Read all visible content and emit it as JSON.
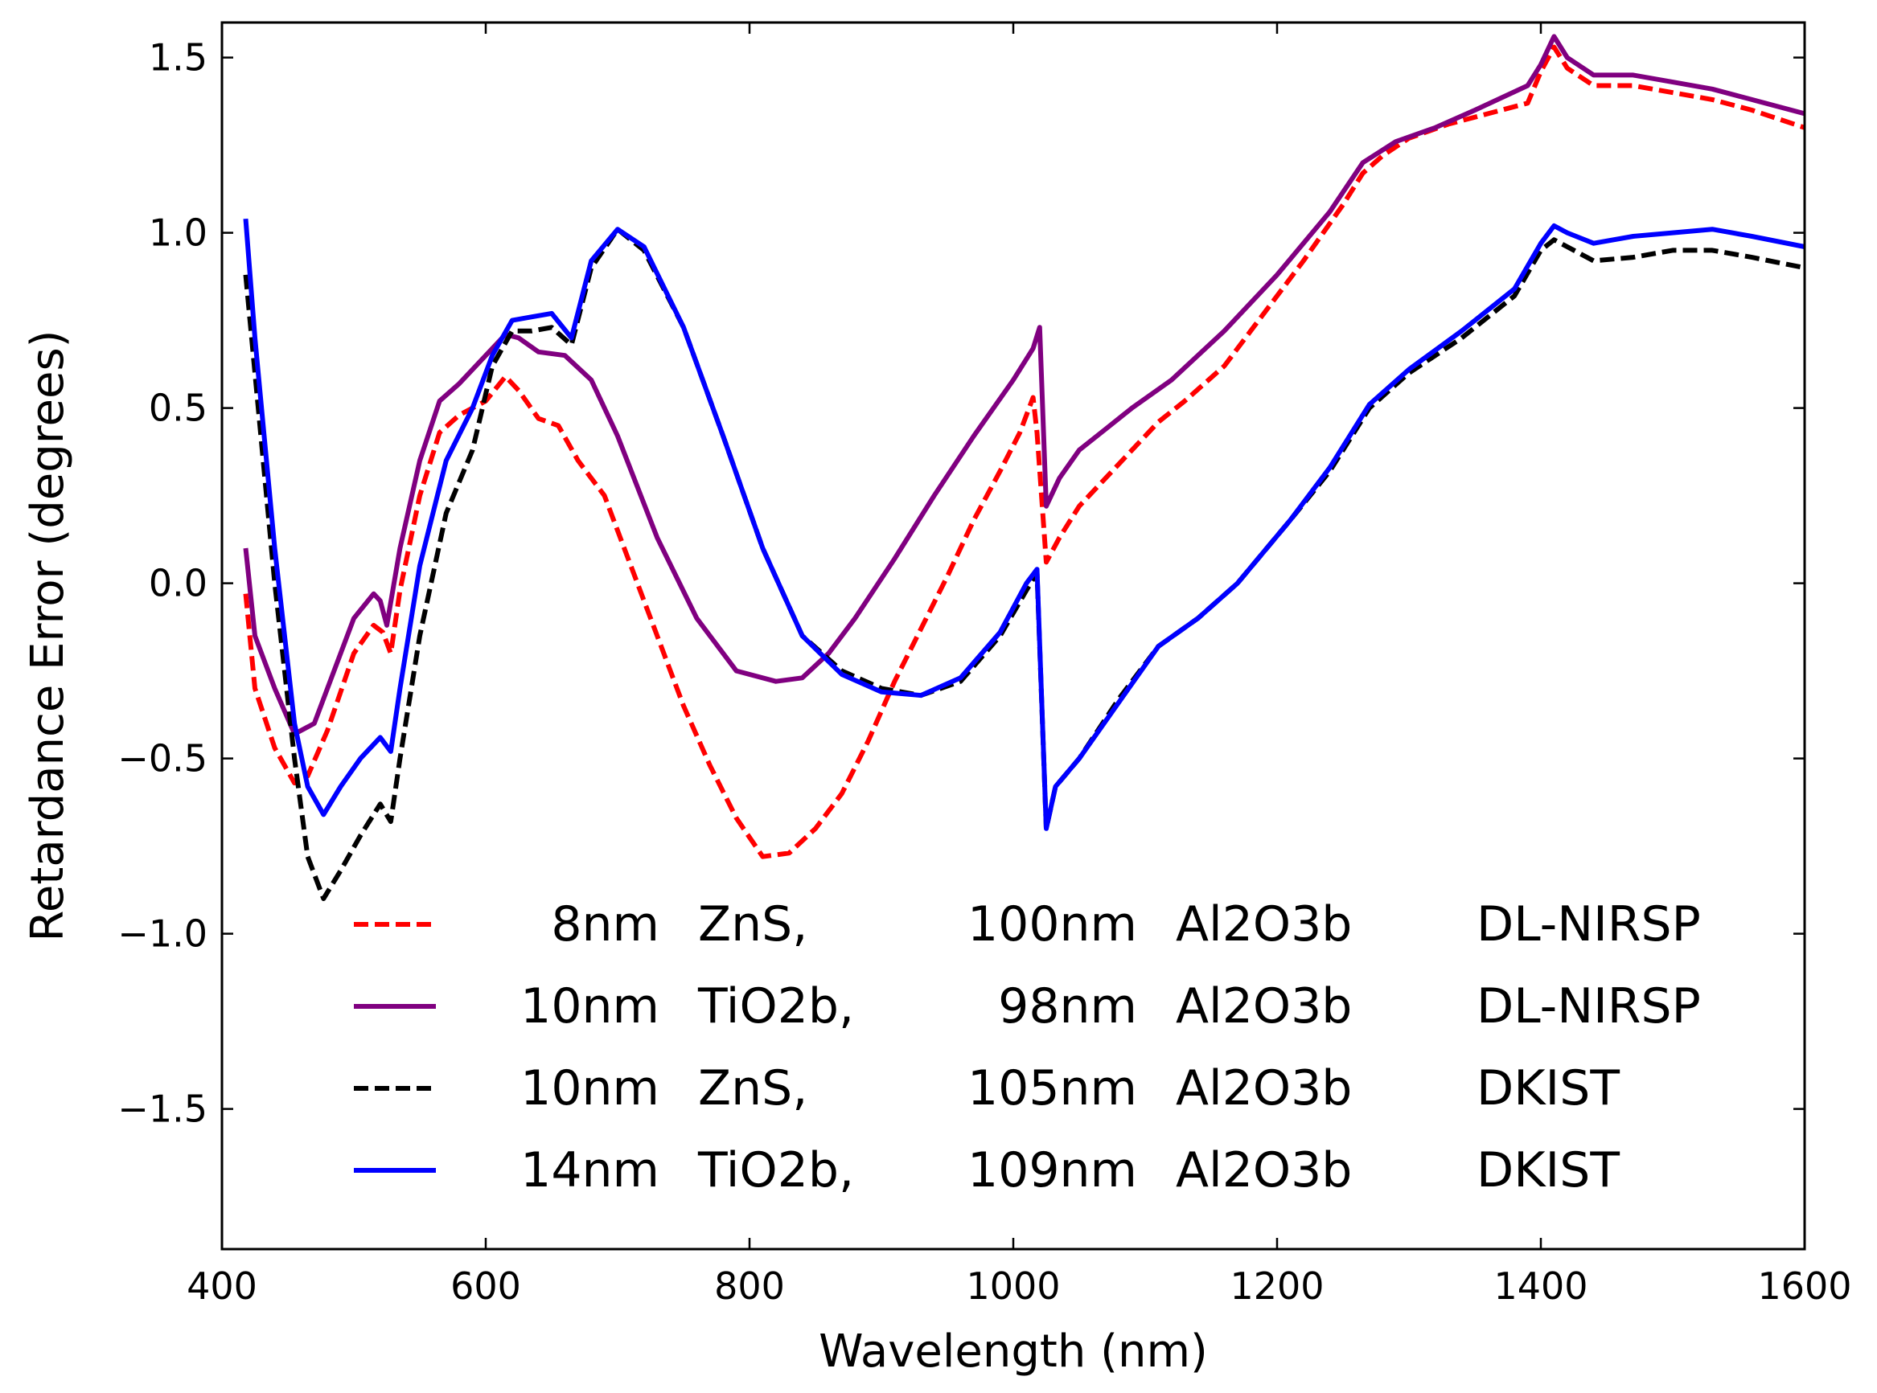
{
  "chart_data": {
    "type": "line",
    "title": "",
    "xlabel": "Wavelength (nm)",
    "ylabel": "Retardance Error (degrees)",
    "xlim": [
      400,
      1600
    ],
    "ylim": [
      -1.9,
      1.6
    ],
    "xticks": [
      400,
      600,
      800,
      1000,
      1200,
      1400,
      1600
    ],
    "xtick_labels": [
      "400",
      "600",
      "800",
      "1000",
      "1200",
      "1400",
      "1600"
    ],
    "yticks": [
      -1.5,
      -1.0,
      -0.5,
      0.0,
      0.5,
      1.0,
      1.5
    ],
    "ytick_labels": [
      "−1.5",
      "−1.0",
      "−0.5",
      "0.0",
      "0.5",
      "1.0",
      "1.5"
    ],
    "grid": false,
    "legend_position": "bottom-right",
    "series": [
      {
        "name": "8nm ZnS, 100nm Al2O3b DL-NIRSP",
        "legend_cols": [
          "8nm",
          "ZnS,",
          "100nm",
          "Al2O3b",
          "DL-NIRSP"
        ],
        "color": "#ff0000",
        "style": "dashed",
        "x": [
          418,
          425,
          440,
          455,
          465,
          480,
          500,
          515,
          522,
          528,
          535,
          550,
          565,
          580,
          600,
          615,
          625,
          640,
          655,
          670,
          690,
          710,
          730,
          750,
          770,
          790,
          810,
          830,
          850,
          870,
          890,
          910,
          930,
          950,
          970,
          990,
          1005,
          1015,
          1018,
          1025,
          1035,
          1050,
          1070,
          1090,
          1110,
          1130,
          1160,
          1190,
          1220,
          1250,
          1265,
          1280,
          1300,
          1330,
          1360,
          1390,
          1400,
          1410,
          1420,
          1440,
          1470,
          1500,
          1530,
          1560,
          1600
        ],
        "y": [
          -0.03,
          -0.3,
          -0.47,
          -0.57,
          -0.55,
          -0.42,
          -0.2,
          -0.12,
          -0.14,
          -0.2,
          -0.02,
          0.25,
          0.43,
          0.48,
          0.52,
          0.59,
          0.55,
          0.47,
          0.45,
          0.35,
          0.25,
          0.05,
          -0.15,
          -0.35,
          -0.52,
          -0.67,
          -0.78,
          -0.77,
          -0.7,
          -0.6,
          -0.45,
          -0.28,
          -0.13,
          0.02,
          0.18,
          0.32,
          0.43,
          0.53,
          0.43,
          0.06,
          0.13,
          0.22,
          0.3,
          0.38,
          0.46,
          0.52,
          0.62,
          0.77,
          0.92,
          1.08,
          1.17,
          1.22,
          1.27,
          1.31,
          1.34,
          1.37,
          1.46,
          1.53,
          1.47,
          1.42,
          1.42,
          1.4,
          1.38,
          1.35,
          1.3
        ]
      },
      {
        "name": "10nm TiO2b, 98nm Al2O3b DL-NIRSP",
        "legend_cols": [
          "10nm",
          "TiO2b,",
          "98nm",
          "Al2O3b",
          "DL-NIRSP"
        ],
        "color": "#800080",
        "style": "solid",
        "x": [
          418,
          425,
          440,
          455,
          470,
          485,
          500,
          515,
          520,
          525,
          535,
          550,
          565,
          580,
          600,
          615,
          625,
          640,
          660,
          680,
          700,
          730,
          760,
          790,
          820,
          840,
          860,
          880,
          910,
          940,
          970,
          1000,
          1015,
          1020,
          1025,
          1035,
          1050,
          1070,
          1090,
          1120,
          1160,
          1200,
          1240,
          1265,
          1290,
          1320,
          1350,
          1390,
          1400,
          1410,
          1420,
          1440,
          1470,
          1500,
          1530,
          1560,
          1600
        ],
        "y": [
          0.1,
          -0.15,
          -0.3,
          -0.43,
          -0.4,
          -0.25,
          -0.1,
          -0.03,
          -0.05,
          -0.12,
          0.1,
          0.35,
          0.52,
          0.57,
          0.65,
          0.71,
          0.7,
          0.66,
          0.65,
          0.58,
          0.42,
          0.13,
          -0.1,
          -0.25,
          -0.28,
          -0.27,
          -0.2,
          -0.1,
          0.07,
          0.25,
          0.42,
          0.58,
          0.67,
          0.73,
          0.22,
          0.3,
          0.38,
          0.44,
          0.5,
          0.58,
          0.72,
          0.88,
          1.06,
          1.2,
          1.26,
          1.3,
          1.35,
          1.42,
          1.48,
          1.56,
          1.5,
          1.45,
          1.45,
          1.43,
          1.41,
          1.38,
          1.34
        ]
      },
      {
        "name": "10nm ZnS, 105nm Al2O3b DKIST",
        "legend_cols": [
          "10nm",
          "ZnS,",
          "105nm",
          "Al2O3b",
          "DKIST"
        ],
        "color": "#000000",
        "style": "dashed",
        "x": [
          418,
          425,
          440,
          455,
          465,
          477,
          490,
          505,
          520,
          528,
          535,
          550,
          570,
          590,
          605,
          620,
          635,
          650,
          665,
          680,
          700,
          720,
          750,
          780,
          810,
          840,
          870,
          900,
          930,
          960,
          990,
          1010,
          1018,
          1025,
          1032,
          1050,
          1080,
          1110,
          1140,
          1170,
          1210,
          1240,
          1270,
          1300,
          1340,
          1380,
          1400,
          1410,
          1420,
          1440,
          1470,
          1500,
          1530,
          1560,
          1600
        ],
        "y": [
          0.88,
          0.6,
          0.0,
          -0.5,
          -0.78,
          -0.9,
          -0.82,
          -0.72,
          -0.63,
          -0.68,
          -0.5,
          -0.15,
          0.2,
          0.38,
          0.62,
          0.72,
          0.72,
          0.73,
          0.68,
          0.9,
          1.01,
          0.95,
          0.73,
          0.42,
          0.1,
          -0.15,
          -0.25,
          -0.3,
          -0.32,
          -0.28,
          -0.15,
          -0.02,
          0.03,
          -0.7,
          -0.58,
          -0.5,
          -0.33,
          -0.18,
          -0.1,
          0.0,
          0.18,
          0.32,
          0.5,
          0.6,
          0.7,
          0.82,
          0.95,
          0.98,
          0.96,
          0.92,
          0.93,
          0.95,
          0.95,
          0.93,
          0.9
        ]
      },
      {
        "name": "14nm TiO2b, 109nm Al2O3b DKIST",
        "legend_cols": [
          "14nm",
          "TiO2b,",
          "109nm",
          "Al2O3b",
          "DKIST"
        ],
        "color": "#0000ff",
        "style": "solid",
        "x": [
          418,
          425,
          440,
          455,
          465,
          477,
          490,
          505,
          520,
          528,
          535,
          550,
          570,
          590,
          605,
          620,
          635,
          650,
          665,
          680,
          700,
          720,
          750,
          780,
          810,
          840,
          870,
          900,
          930,
          960,
          990,
          1010,
          1018,
          1025,
          1032,
          1050,
          1080,
          1110,
          1140,
          1170,
          1210,
          1240,
          1270,
          1300,
          1340,
          1380,
          1400,
          1410,
          1420,
          1440,
          1470,
          1500,
          1530,
          1560,
          1600
        ],
        "y": [
          1.04,
          0.7,
          0.1,
          -0.4,
          -0.58,
          -0.66,
          -0.58,
          -0.5,
          -0.44,
          -0.48,
          -0.3,
          0.05,
          0.35,
          0.5,
          0.65,
          0.75,
          0.76,
          0.77,
          0.7,
          0.92,
          1.01,
          0.96,
          0.73,
          0.42,
          0.1,
          -0.15,
          -0.26,
          -0.31,
          -0.32,
          -0.27,
          -0.14,
          0.0,
          0.04,
          -0.7,
          -0.58,
          -0.5,
          -0.34,
          -0.18,
          -0.1,
          0.0,
          0.18,
          0.33,
          0.51,
          0.61,
          0.72,
          0.84,
          0.97,
          1.02,
          1.0,
          0.97,
          0.99,
          1.0,
          1.01,
          0.99,
          0.96
        ]
      }
    ]
  }
}
